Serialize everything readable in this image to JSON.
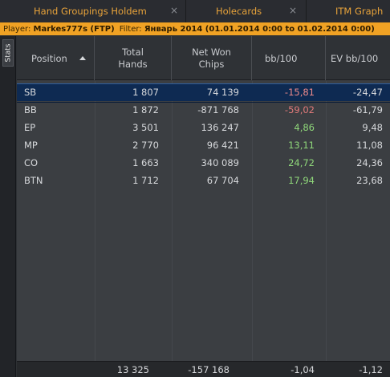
{
  "tabs": [
    {
      "label": "Hand Groupings Holdem",
      "close": "×"
    },
    {
      "label": "Holecards",
      "close": "×"
    },
    {
      "label": "ITM Graph"
    }
  ],
  "filter": {
    "player_label": "Player:",
    "player_value": "Markes777s (FTP)",
    "filter_label": "Filter:",
    "filter_value": "Январь 2014 (01.01.2014 0:00 to 01.02.2014 0:00)"
  },
  "sidebar": {
    "stats_tab": "Stats"
  },
  "table": {
    "columns": {
      "position": "Position",
      "total_hands_1": "Total",
      "total_hands_2": "Hands",
      "net_won_1": "Net Won",
      "net_won_2": "Chips",
      "bb100": "bb/100",
      "ev_bb100": "EV bb/100"
    },
    "sort": {
      "column": "position",
      "direction": "ascending",
      "icon": "sort-up-icon"
    },
    "rows": [
      {
        "position": "SB",
        "hands": "1 807",
        "net": "74 139",
        "bb100": "-15,81",
        "ev": "-24,47",
        "bb_status": "negative",
        "selected": true
      },
      {
        "position": "BB",
        "hands": "1 872",
        "net": "-871 768",
        "bb100": "-59,02",
        "ev": "-61,79",
        "bb_status": "negative",
        "selected": false
      },
      {
        "position": "EP",
        "hands": "3 501",
        "net": "136 247",
        "bb100": "4,86",
        "ev": "9,48",
        "bb_status": "positive",
        "selected": false
      },
      {
        "position": "MP",
        "hands": "2 770",
        "net": "96 421",
        "bb100": "13,11",
        "ev": "11,08",
        "bb_status": "positive",
        "selected": false
      },
      {
        "position": "CO",
        "hands": "1 663",
        "net": "340 089",
        "bb100": "24,72",
        "ev": "24,36",
        "bb_status": "positive",
        "selected": false
      },
      {
        "position": "BTN",
        "hands": "1 712",
        "net": "67 704",
        "bb100": "17,94",
        "ev": "23,68",
        "bb_status": "positive",
        "selected": false
      }
    ],
    "totals": {
      "hands": "13 325",
      "net": "-157 168",
      "bb100": "-1,04",
      "ev": "-1,12"
    }
  },
  "colors": {
    "accent_tab_text": "#e8a33a",
    "filter_bar": "#f0a224",
    "negative": "#e07a7a",
    "positive": "#8fd77a",
    "selected_row": "#0e2a52"
  }
}
